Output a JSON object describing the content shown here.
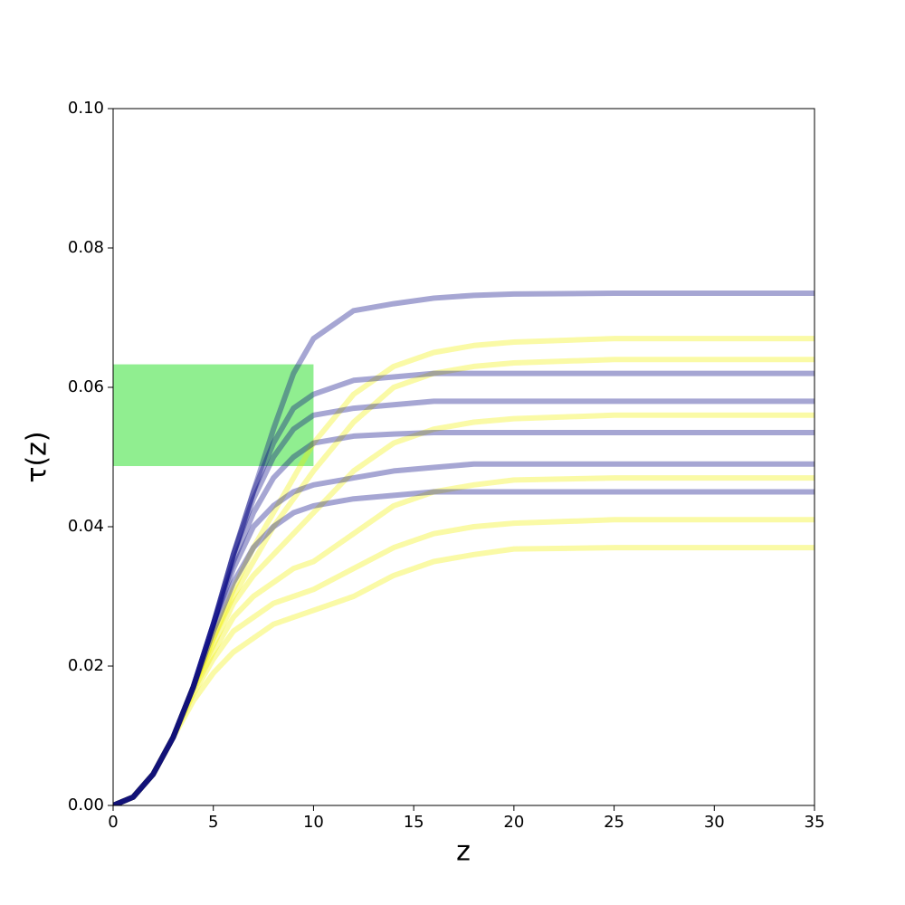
{
  "chart_data": {
    "type": "line",
    "x_label": "z",
    "y_label": "τ(z)",
    "xlim": [
      0,
      35
    ],
    "ylim": [
      0,
      0.1
    ],
    "xticks": [
      0,
      5,
      10,
      15,
      20,
      25,
      30,
      35
    ],
    "yticks": [
      {
        "value": 0,
        "label": "0.00"
      },
      {
        "value": 0.02,
        "label": "0.02"
      },
      {
        "value": 0.04,
        "label": "0.04"
      },
      {
        "value": 0.06,
        "label": "0.06"
      },
      {
        "value": 0.08,
        "label": "0.08"
      },
      {
        "value": 0.1,
        "label": "0.10"
      }
    ],
    "alpha": 0.35,
    "band": {
      "x": [
        0,
        10
      ],
      "y": [
        0.0487,
        0.0633
      ],
      "color": "#90ee90"
    },
    "x": [
      0,
      1,
      2,
      3,
      4,
      5,
      6,
      7,
      8,
      9,
      10,
      12,
      14,
      16,
      18,
      20,
      25,
      30,
      35
    ],
    "series": [
      {
        "color": "#f0f000",
        "values": [
          0,
          0.0012,
          0.0045,
          0.0098,
          0.015,
          0.019,
          0.022,
          0.024,
          0.026,
          0.027,
          0.028,
          0.03,
          0.033,
          0.035,
          0.036,
          0.0368,
          0.037,
          0.037,
          0.037
        ]
      },
      {
        "color": "#f0f000",
        "values": [
          0,
          0.0012,
          0.0045,
          0.0098,
          0.016,
          0.021,
          0.025,
          0.027,
          0.029,
          0.03,
          0.031,
          0.034,
          0.037,
          0.039,
          0.04,
          0.0405,
          0.041,
          0.041,
          0.041
        ]
      },
      {
        "color": "#f0f000",
        "values": [
          0,
          0.0012,
          0.0045,
          0.0098,
          0.0165,
          0.022,
          0.027,
          0.03,
          0.032,
          0.034,
          0.035,
          0.039,
          0.043,
          0.045,
          0.046,
          0.0467,
          0.047,
          0.047,
          0.047
        ]
      },
      {
        "color": "#f0f000",
        "values": [
          0,
          0.0012,
          0.0045,
          0.0098,
          0.017,
          0.023,
          0.029,
          0.033,
          0.036,
          0.039,
          0.042,
          0.048,
          0.052,
          0.054,
          0.055,
          0.0555,
          0.056,
          0.056,
          0.056
        ]
      },
      {
        "color": "#f0f000",
        "values": [
          0,
          0.0012,
          0.0045,
          0.0098,
          0.017,
          0.024,
          0.03,
          0.035,
          0.04,
          0.044,
          0.048,
          0.055,
          0.06,
          0.062,
          0.063,
          0.0635,
          0.064,
          0.064,
          0.064
        ]
      },
      {
        "color": "#f0f000",
        "values": [
          0,
          0.0012,
          0.0045,
          0.0098,
          0.017,
          0.024,
          0.031,
          0.037,
          0.042,
          0.047,
          0.052,
          0.059,
          0.063,
          0.065,
          0.066,
          0.0665,
          0.067,
          0.067,
          0.067
        ]
      },
      {
        "color": "#000080",
        "values": [
          0,
          0.0012,
          0.0045,
          0.0098,
          0.017,
          0.025,
          0.032,
          0.037,
          0.04,
          0.042,
          0.043,
          0.044,
          0.0445,
          0.045,
          0.045,
          0.045,
          0.045,
          0.045,
          0.045
        ]
      },
      {
        "color": "#000080",
        "values": [
          0,
          0.0012,
          0.0045,
          0.0098,
          0.017,
          0.026,
          0.034,
          0.04,
          0.043,
          0.045,
          0.046,
          0.047,
          0.048,
          0.0485,
          0.049,
          0.049,
          0.049,
          0.049,
          0.049
        ]
      },
      {
        "color": "#000080",
        "values": [
          0,
          0.0012,
          0.0045,
          0.0098,
          0.017,
          0.026,
          0.035,
          0.042,
          0.047,
          0.05,
          0.052,
          0.053,
          0.0533,
          0.0535,
          0.0535,
          0.0535,
          0.0535,
          0.0535,
          0.0535
        ]
      },
      {
        "color": "#000080",
        "values": [
          0,
          0.0012,
          0.0045,
          0.0098,
          0.017,
          0.026,
          0.036,
          0.044,
          0.05,
          0.054,
          0.056,
          0.057,
          0.0575,
          0.058,
          0.058,
          0.058,
          0.058,
          0.058,
          0.058
        ]
      },
      {
        "color": "#000080",
        "values": [
          0,
          0.0012,
          0.0045,
          0.0098,
          0.017,
          0.026,
          0.036,
          0.045,
          0.052,
          0.057,
          0.059,
          0.061,
          0.0615,
          0.062,
          0.062,
          0.062,
          0.062,
          0.062,
          0.062
        ]
      },
      {
        "color": "#000080",
        "values": [
          0,
          0.0012,
          0.0045,
          0.0098,
          0.017,
          0.026,
          0.036,
          0.045,
          0.054,
          0.062,
          0.067,
          0.071,
          0.072,
          0.0728,
          0.0732,
          0.0734,
          0.0735,
          0.0735,
          0.0735
        ]
      }
    ]
  }
}
